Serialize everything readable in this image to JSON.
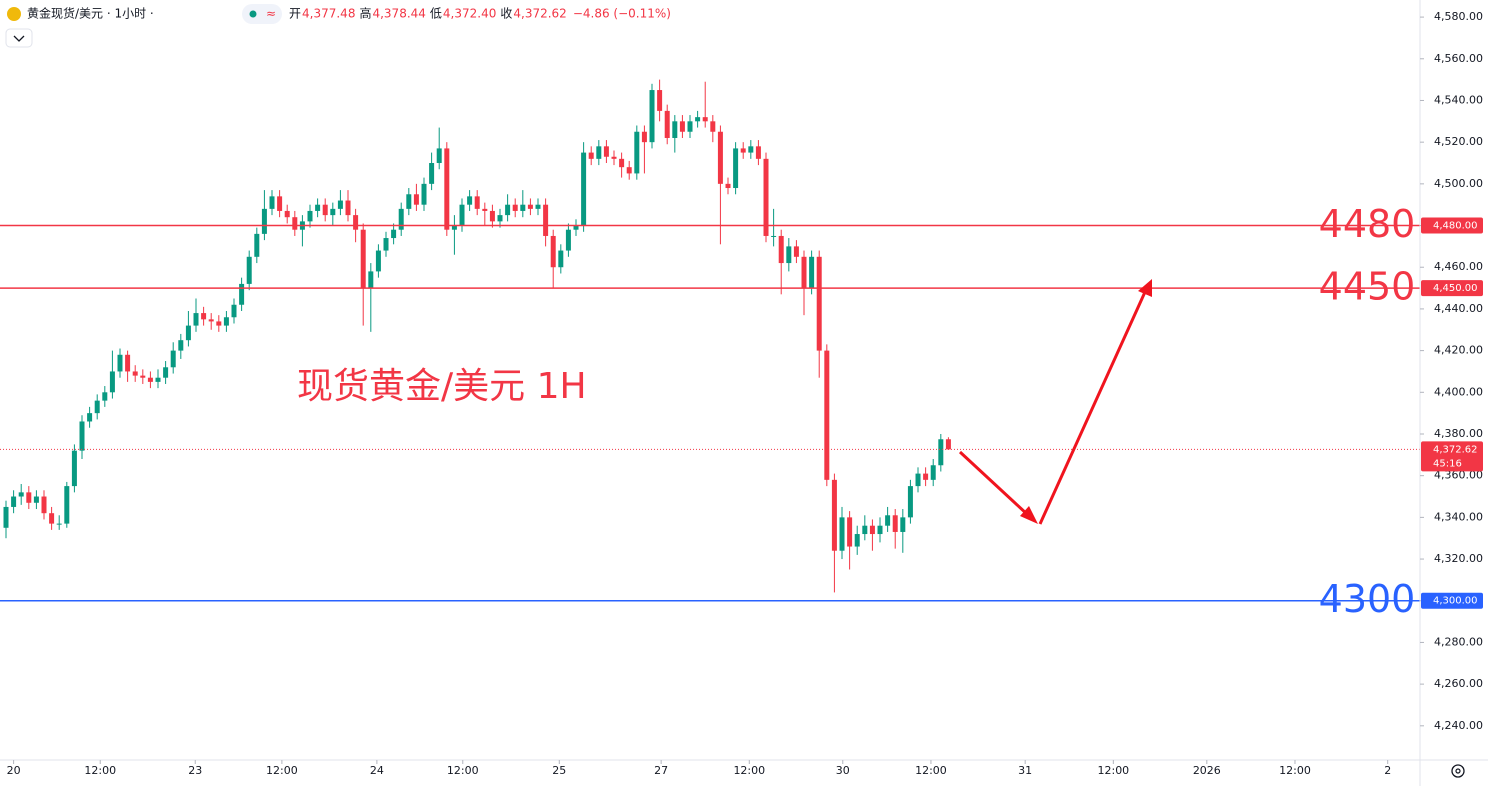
{
  "chart_data": {
    "type": "candlestick",
    "symbol": "黄金现货/美元 · 1小时 ·",
    "ohlc_legend": [
      {
        "label": "开",
        "value": "4,377.48"
      },
      {
        "label": "高",
        "value": "4,378.44"
      },
      {
        "label": "低",
        "value": "4,372.40"
      },
      {
        "label": "收",
        "value": "4,372.62"
      }
    ],
    "change": "−4.86 (−0.11%)",
    "annotation": "现货黄金/美元 1H",
    "up_color": "#089981",
    "down_color": "#f23645",
    "candles": {
      "open": [
        4335,
        4345,
        4350,
        4352,
        4347,
        4350,
        4342,
        4337,
        4337,
        4355,
        4372,
        4386,
        4390,
        4396,
        4400,
        4410,
        4418,
        4410,
        4408,
        4407,
        4405,
        4407,
        4412,
        4420,
        4425,
        4432,
        4438,
        4435,
        4434,
        4432,
        4436,
        4442,
        4452,
        4465,
        4476,
        4488,
        4494,
        4487,
        4484,
        4478,
        4482,
        4487,
        4490,
        4485,
        4488,
        4492,
        4485,
        4478,
        4450,
        4458,
        4468,
        4474,
        4478,
        4488,
        4495,
        4490,
        4500,
        4510,
        4517,
        4478,
        4480,
        4490,
        4494,
        4488,
        4487,
        4482,
        4485,
        4490,
        4487,
        4490,
        4488,
        4490,
        4475,
        4460,
        4468,
        4478,
        4480,
        4515,
        4512,
        4518,
        4513,
        4512,
        4508,
        4505,
        4525,
        4520,
        4545,
        4535,
        4522,
        4530,
        4525,
        4530,
        4532,
        4530,
        4525,
        4500,
        4498,
        4517,
        4515,
        4518,
        4512,
        4475,
        4475,
        4462,
        4470,
        4465,
        4450,
        4465,
        4420,
        4358,
        4324,
        4340,
        4326,
        4332,
        4336,
        4332,
        4336,
        4341,
        4333,
        4340,
        4355,
        4361,
        4358,
        4365,
        4377.48
      ],
      "high": [
        4348,
        4353,
        4356,
        4355,
        4353,
        4353,
        4345,
        4341,
        4357,
        4375,
        4389,
        4393,
        4399,
        4403,
        4420,
        4421,
        4420,
        4413,
        4411,
        4410,
        4411,
        4415,
        4424,
        4428,
        4439,
        4445,
        4441,
        4438,
        4437,
        4439,
        4445,
        4455,
        4468,
        4479,
        4497,
        4497,
        4497,
        4490,
        4487,
        4485,
        4490,
        4493,
        4493,
        4491,
        4497,
        4497,
        4488,
        4481,
        4462,
        4471,
        4477,
        4481,
        4491,
        4498,
        4500,
        4503,
        4515,
        4527,
        4520,
        4485,
        4493,
        4497,
        4497,
        4491,
        4490,
        4488,
        4495,
        4493,
        4497,
        4493,
        4493,
        4493,
        4478,
        4471,
        4481,
        4483,
        4520,
        4518,
        4521,
        4521,
        4516,
        4515,
        4511,
        4528,
        4528,
        4548,
        4550,
        4538,
        4533,
        4533,
        4533,
        4535,
        4549,
        4533,
        4528,
        4503,
        4520,
        4520,
        4521,
        4521,
        4515,
        4488,
        4478,
        4474,
        4473,
        4468,
        4468,
        4468,
        4423,
        4361,
        4345,
        4343,
        4336,
        4341,
        4339,
        4340,
        4345,
        4344,
        4344,
        4358,
        4364,
        4364,
        4368,
        4380,
        4378.44
      ],
      "low": [
        4330,
        4342,
        4346,
        4344,
        4344,
        4339,
        4334,
        4334,
        4335,
        4352,
        4368,
        4383,
        4387,
        4393,
        4397,
        4407,
        4405,
        4405,
        4404,
        4402,
        4402,
        4404,
        4409,
        4416,
        4422,
        4429,
        4432,
        4430,
        4429,
        4429,
        4433,
        4439,
        4449,
        4462,
        4473,
        4485,
        4484,
        4481,
        4475,
        4470,
        4479,
        4484,
        4482,
        4480,
        4485,
        4482,
        4472,
        4432,
        4429,
        4455,
        4465,
        4471,
        4475,
        4485,
        4487,
        4487,
        4497,
        4507,
        4475,
        4466,
        4477,
        4487,
        4485,
        4480,
        4479,
        4479,
        4482,
        4484,
        4484,
        4485,
        4485,
        4470,
        4450,
        4457,
        4465,
        4475,
        4477,
        4509,
        4509,
        4510,
        4509,
        4503,
        4502,
        4502,
        4505,
        4517,
        4530,
        4519,
        4515,
        4522,
        4522,
        4527,
        4527,
        4520,
        4471,
        4495,
        4495,
        4512,
        4512,
        4509,
        4472,
        4470,
        4447,
        4458,
        4462,
        4437,
        4447,
        4407,
        4355,
        4304,
        4320,
        4315,
        4322,
        4329,
        4324,
        4328,
        4333,
        4325,
        4323,
        4337,
        4352,
        4355,
        4355,
        4362,
        4372.4
      ],
      "close": [
        4345,
        4350,
        4352,
        4347,
        4350,
        4342,
        4337,
        4337,
        4355,
        4372,
        4386,
        4390,
        4396,
        4400,
        4410,
        4418,
        4410,
        4408,
        4407,
        4405,
        4407,
        4412,
        4420,
        4425,
        4432,
        4438,
        4435,
        4434,
        4432,
        4436,
        4442,
        4452,
        4465,
        4476,
        4488,
        4494,
        4487,
        4484,
        4478,
        4482,
        4487,
        4490,
        4485,
        4488,
        4492,
        4485,
        4478,
        4450,
        4458,
        4468,
        4474,
        4478,
        4488,
        4495,
        4490,
        4500,
        4510,
        4517,
        4478,
        4480,
        4490,
        4494,
        4488,
        4487,
        4482,
        4485,
        4490,
        4487,
        4490,
        4488,
        4490,
        4475,
        4460,
        4468,
        4478,
        4480,
        4515,
        4512,
        4518,
        4513,
        4512,
        4508,
        4505,
        4525,
        4520,
        4545,
        4535,
        4522,
        4530,
        4525,
        4530,
        4532,
        4530,
        4525,
        4500,
        4498,
        4517,
        4515,
        4518,
        4512,
        4475,
        4475,
        4462,
        4470,
        4465,
        4450,
        4465,
        4420,
        4358,
        4324,
        4340,
        4326,
        4332,
        4336,
        4332,
        4336,
        4341,
        4333,
        4340,
        4355,
        4361,
        4358,
        4365,
        4377.48,
        4372.62
      ]
    },
    "last_price": {
      "label": "4,372.62",
      "countdown": "45:16",
      "color": "#f23645"
    },
    "levels": [
      {
        "value": 4480,
        "axis_label": "4,480.00",
        "color": "#f23645"
      },
      {
        "value": 4450,
        "axis_label": "4,450.00",
        "color": "#f23645"
      },
      {
        "value": 4300,
        "axis_label": "4,300.00",
        "color": "#2962ff"
      }
    ],
    "xlim": [
      -0.79,
      186.05
    ],
    "xticks": [
      {
        "value": 1,
        "label": "20"
      },
      {
        "value": 12.4,
        "label": "12:00"
      },
      {
        "value": 24.9,
        "label": "23"
      },
      {
        "value": 36.3,
        "label": "12:00"
      },
      {
        "value": 48.8,
        "label": "24"
      },
      {
        "value": 60.1,
        "label": "12:00"
      },
      {
        "value": 72.8,
        "label": "25"
      },
      {
        "value": 86.2,
        "label": "27"
      },
      {
        "value": 97.8,
        "label": "12:00"
      },
      {
        "value": 110.1,
        "label": "30"
      },
      {
        "value": 121.7,
        "label": "12:00"
      },
      {
        "value": 134.1,
        "label": "31"
      },
      {
        "value": 145.7,
        "label": "12:00"
      },
      {
        "value": 158,
        "label": "2026"
      },
      {
        "value": 169.6,
        "label": "12:00"
      },
      {
        "value": 181.8,
        "label": "2"
      }
    ],
    "ylim": [
      4223.6,
      4588.2
    ],
    "yticks": [
      {
        "value": 4240,
        "label": "4,240.00"
      },
      {
        "value": 4260,
        "label": "4,260.00"
      },
      {
        "value": 4280,
        "label": "4,280.00"
      },
      {
        "value": 4300,
        "label": "4,300.00"
      },
      {
        "value": 4320,
        "label": "4,320.00"
      },
      {
        "value": 4340,
        "label": "4,340.00"
      },
      {
        "value": 4360,
        "label": "4,360.00"
      },
      {
        "value": 4380,
        "label": "4,380.00"
      },
      {
        "value": 4400,
        "label": "4,400.00"
      },
      {
        "value": 4420,
        "label": "4,420.00"
      },
      {
        "value": 4440,
        "label": "4,440.00"
      },
      {
        "value": 4460,
        "label": "4,460.00"
      },
      {
        "value": 4480,
        "label": "4,480.00"
      },
      {
        "value": 4500,
        "label": "4,500.00"
      },
      {
        "value": 4520,
        "label": "4,520.00"
      },
      {
        "value": 4540,
        "label": "4,540.00"
      },
      {
        "value": 4560,
        "label": "4,560.00"
      },
      {
        "value": 4580,
        "label": "4,580.00"
      }
    ]
  }
}
